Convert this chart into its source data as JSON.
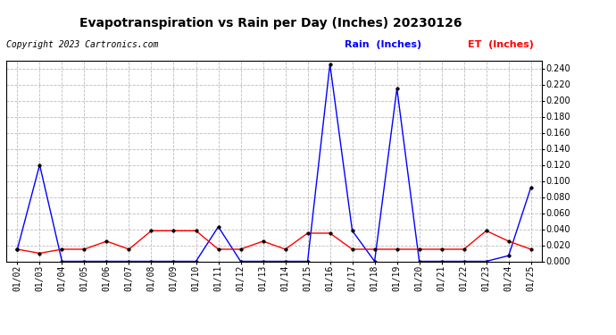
{
  "title": "Evapotranspiration vs Rain per Day (Inches) 20230126",
  "copyright_text": "Copyright 2023 Cartronics.com",
  "legend_rain": "Rain  (Inches)",
  "legend_et": "ET  (Inches)",
  "dates": [
    "01/02",
    "01/03",
    "01/04",
    "01/05",
    "01/06",
    "01/07",
    "01/08",
    "01/09",
    "01/10",
    "01/11",
    "01/12",
    "01/13",
    "01/14",
    "01/15",
    "01/16",
    "01/17",
    "01/18",
    "01/19",
    "01/20",
    "01/21",
    "01/22",
    "01/23",
    "01/24",
    "01/25"
  ],
  "rain": [
    0.015,
    0.12,
    0.0,
    0.0,
    0.0,
    0.0,
    0.0,
    0.0,
    0.0,
    0.043,
    0.0,
    0.0,
    0.0,
    0.0,
    0.245,
    0.038,
    0.0,
    0.215,
    0.0,
    0.0,
    0.0,
    0.0,
    0.007,
    0.092
  ],
  "et": [
    0.015,
    0.01,
    0.015,
    0.015,
    0.025,
    0.015,
    0.038,
    0.038,
    0.038,
    0.015,
    0.015,
    0.025,
    0.015,
    0.035,
    0.035,
    0.015,
    0.015,
    0.015,
    0.015,
    0.015,
    0.015,
    0.038,
    0.025,
    0.015
  ],
  "rain_color": "blue",
  "et_color": "red",
  "ylim": [
    0.0,
    0.25
  ],
  "ytick_step": 0.02,
  "background_color": "#ffffff",
  "grid_color": "#bbbbbb",
  "title_fontsize": 10,
  "copyright_fontsize": 7,
  "legend_fontsize": 8,
  "tick_fontsize": 7
}
